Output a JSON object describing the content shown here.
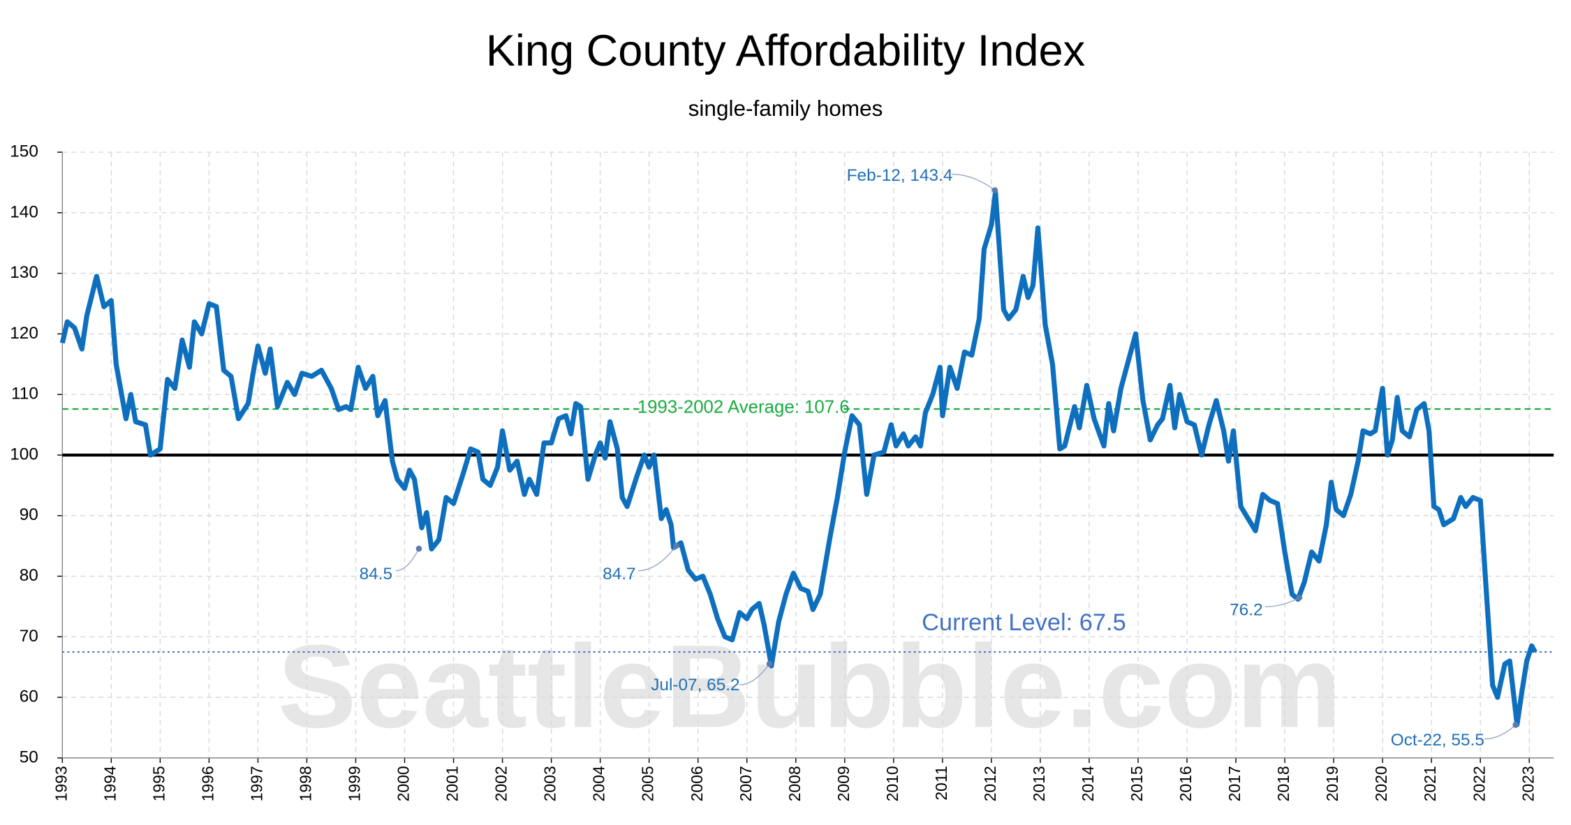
{
  "chart_data": {
    "type": "line",
    "title": "King County Affordability Index",
    "subtitle": "single-family homes",
    "watermark": "SeattleBubble.com",
    "xlim": [
      1993,
      2023.5
    ],
    "xticks": [
      1993,
      1994,
      1995,
      1996,
      1997,
      1998,
      1999,
      2000,
      2001,
      2002,
      2003,
      2004,
      2005,
      2006,
      2007,
      2008,
      2009,
      2010,
      2011,
      2012,
      2013,
      2014,
      2015,
      2016,
      2017,
      2018,
      2019,
      2020,
      2021,
      2022,
      2023
    ],
    "ylim": [
      50,
      150
    ],
    "yticks": [
      50,
      60,
      70,
      80,
      90,
      100,
      110,
      120,
      130,
      140,
      150
    ],
    "grid": true,
    "reference_lines": [
      {
        "value": 100,
        "color": "#000000"
      },
      {
        "value": 107.6,
        "color": "#1aab40",
        "label": "1993-2002 Average: 107.6"
      },
      {
        "value": 67.5,
        "color": "#4472c4",
        "label": "Current Level: 67.5"
      }
    ],
    "annotations": [
      "Feb-12, 143.4",
      "84.5",
      "84.7",
      "Jul-07, 65.2",
      "76.2",
      "Oct-22, 55.5"
    ],
    "series": [
      {
        "name": "Affordability Index",
        "color": "#0e6fbe",
        "x": [
          1993.0,
          1993.1,
          1993.25,
          1993.4,
          1993.5,
          1993.7,
          1993.85,
          1994.0,
          1994.1,
          1994.3,
          1994.4,
          1994.5,
          1994.7,
          1994.8,
          1995.0,
          1995.15,
          1995.3,
          1995.45,
          1995.6,
          1995.7,
          1995.85,
          1996.0,
          1996.15,
          1996.3,
          1996.45,
          1996.6,
          1996.8,
          1996.9,
          1997.0,
          1997.15,
          1997.25,
          1997.4,
          1997.6,
          1997.75,
          1997.9,
          1998.1,
          1998.3,
          1998.5,
          1998.65,
          1998.8,
          1998.9,
          1999.05,
          1999.2,
          1999.35,
          1999.45,
          1999.6,
          1999.75,
          1999.85,
          2000.0,
          2000.1,
          2000.2,
          2000.35,
          2000.45,
          2000.55,
          2000.7,
          2000.85,
          2001.0,
          2001.2,
          2001.35,
          2001.5,
          2001.6,
          2001.75,
          2001.9,
          2002.0,
          2002.15,
          2002.3,
          2002.45,
          2002.55,
          2002.7,
          2002.85,
          2003.0,
          2003.15,
          2003.3,
          2003.4,
          2003.5,
          2003.6,
          2003.75,
          2003.9,
          2004.0,
          2004.1,
          2004.2,
          2004.35,
          2004.45,
          2004.55,
          2004.75,
          2004.9,
          2005.0,
          2005.1,
          2005.25,
          2005.35,
          2005.45,
          2005.5,
          2005.65,
          2005.8,
          2005.95,
          2006.1,
          2006.25,
          2006.4,
          2006.55,
          2006.7,
          2006.85,
          2007.0,
          2007.1,
          2007.25,
          2007.35,
          2007.5,
          2007.65,
          2007.8,
          2007.95,
          2008.1,
          2008.25,
          2008.35,
          2008.5,
          2008.7,
          2008.85,
          2009.0,
          2009.15,
          2009.3,
          2009.45,
          2009.6,
          2009.8,
          2009.95,
          2010.05,
          2010.2,
          2010.3,
          2010.45,
          2010.55,
          2010.65,
          2010.8,
          2010.95,
          2011.0,
          2011.15,
          2011.3,
          2011.45,
          2011.6,
          2011.75,
          2011.85,
          2012.0,
          2012.083,
          2012.25,
          2012.35,
          2012.5,
          2012.65,
          2012.75,
          2012.85,
          2012.95,
          2013.1,
          2013.25,
          2013.4,
          2013.5,
          2013.7,
          2013.8,
          2013.95,
          2014.1,
          2014.3,
          2014.4,
          2014.5,
          2014.65,
          2014.85,
          2014.95,
          2015.1,
          2015.25,
          2015.4,
          2015.5,
          2015.65,
          2015.75,
          2015.85,
          2016.0,
          2016.15,
          2016.3,
          2016.45,
          2016.6,
          2016.75,
          2016.85,
          2016.95,
          2017.1,
          2017.25,
          2017.4,
          2017.55,
          2017.7,
          2017.85,
          2018.0,
          2018.15,
          2018.27,
          2018.4,
          2018.55,
          2018.7,
          2018.85,
          2018.95,
          2019.05,
          2019.2,
          2019.35,
          2019.5,
          2019.6,
          2019.75,
          2019.85,
          2020.0,
          2020.1,
          2020.2,
          2020.3,
          2020.4,
          2020.55,
          2020.7,
          2020.85,
          2020.95,
          2021.05,
          2021.15,
          2021.25,
          2021.45,
          2021.6,
          2021.7,
          2021.85,
          2022.0,
          2022.1,
          2022.25,
          2022.35,
          2022.5,
          2022.6,
          2022.75,
          2022.85,
          2022.95,
          2023.05,
          2023.12
        ],
        "values": [
          118.5,
          122,
          121,
          117.5,
          123,
          129.5,
          124.5,
          125.5,
          115,
          106,
          110,
          105.5,
          105,
          100,
          101,
          112.5,
          111,
          119,
          114.5,
          122,
          120,
          125,
          124.5,
          114,
          113,
          106,
          108.5,
          113.5,
          118,
          113.5,
          117.5,
          108,
          112,
          110,
          113.5,
          113,
          114,
          111,
          107.5,
          108,
          107.5,
          114.5,
          111,
          113,
          106.5,
          109,
          99,
          96,
          94.5,
          97.5,
          96,
          88,
          90.5,
          84.5,
          86,
          93,
          92,
          97,
          101,
          100.5,
          96,
          95,
          98,
          104,
          97.5,
          99,
          93.5,
          96,
          93.5,
          102,
          102,
          106,
          106.5,
          103.5,
          108.5,
          108,
          96,
          100,
          102,
          99.5,
          105.5,
          101,
          93,
          91.5,
          96.5,
          100,
          98,
          100,
          89.5,
          91,
          88.5,
          84.7,
          85.5,
          81,
          79.5,
          80,
          77,
          73,
          70,
          69.5,
          74,
          73,
          74.5,
          75.5,
          72,
          65.2,
          72.5,
          77,
          80.5,
          78,
          77.5,
          74.5,
          77,
          86.5,
          93,
          100.5,
          106.5,
          105,
          93.5,
          100,
          100.5,
          105,
          101.5,
          103.5,
          101.5,
          103,
          101.5,
          107,
          110,
          114.5,
          106.5,
          114.5,
          111,
          117,
          116.5,
          122.5,
          134,
          138,
          143.4,
          124,
          122.5,
          124,
          129.5,
          126,
          128,
          137.5,
          121.5,
          115,
          101,
          101.5,
          108,
          104.5,
          111.5,
          106,
          101.5,
          108.5,
          104,
          111,
          117,
          120,
          109,
          102.5,
          105,
          106,
          111.5,
          104.5,
          110,
          105.5,
          105,
          100,
          105,
          109,
          104,
          99,
          104,
          91.5,
          89.5,
          87.5,
          93.5,
          92.5,
          92,
          84,
          77,
          76.2,
          79,
          84,
          82.5,
          88.5,
          95.5,
          91,
          90,
          93.5,
          99,
          104,
          103.5,
          104,
          111,
          100,
          102.5,
          109.5,
          104,
          103,
          107.5,
          108.5,
          104,
          91.5,
          91,
          88.5,
          89.5,
          93,
          91.5,
          93,
          92.5,
          80,
          62,
          60,
          65.5,
          66,
          55.5,
          61,
          66,
          68.5,
          67.5
        ]
      }
    ]
  }
}
